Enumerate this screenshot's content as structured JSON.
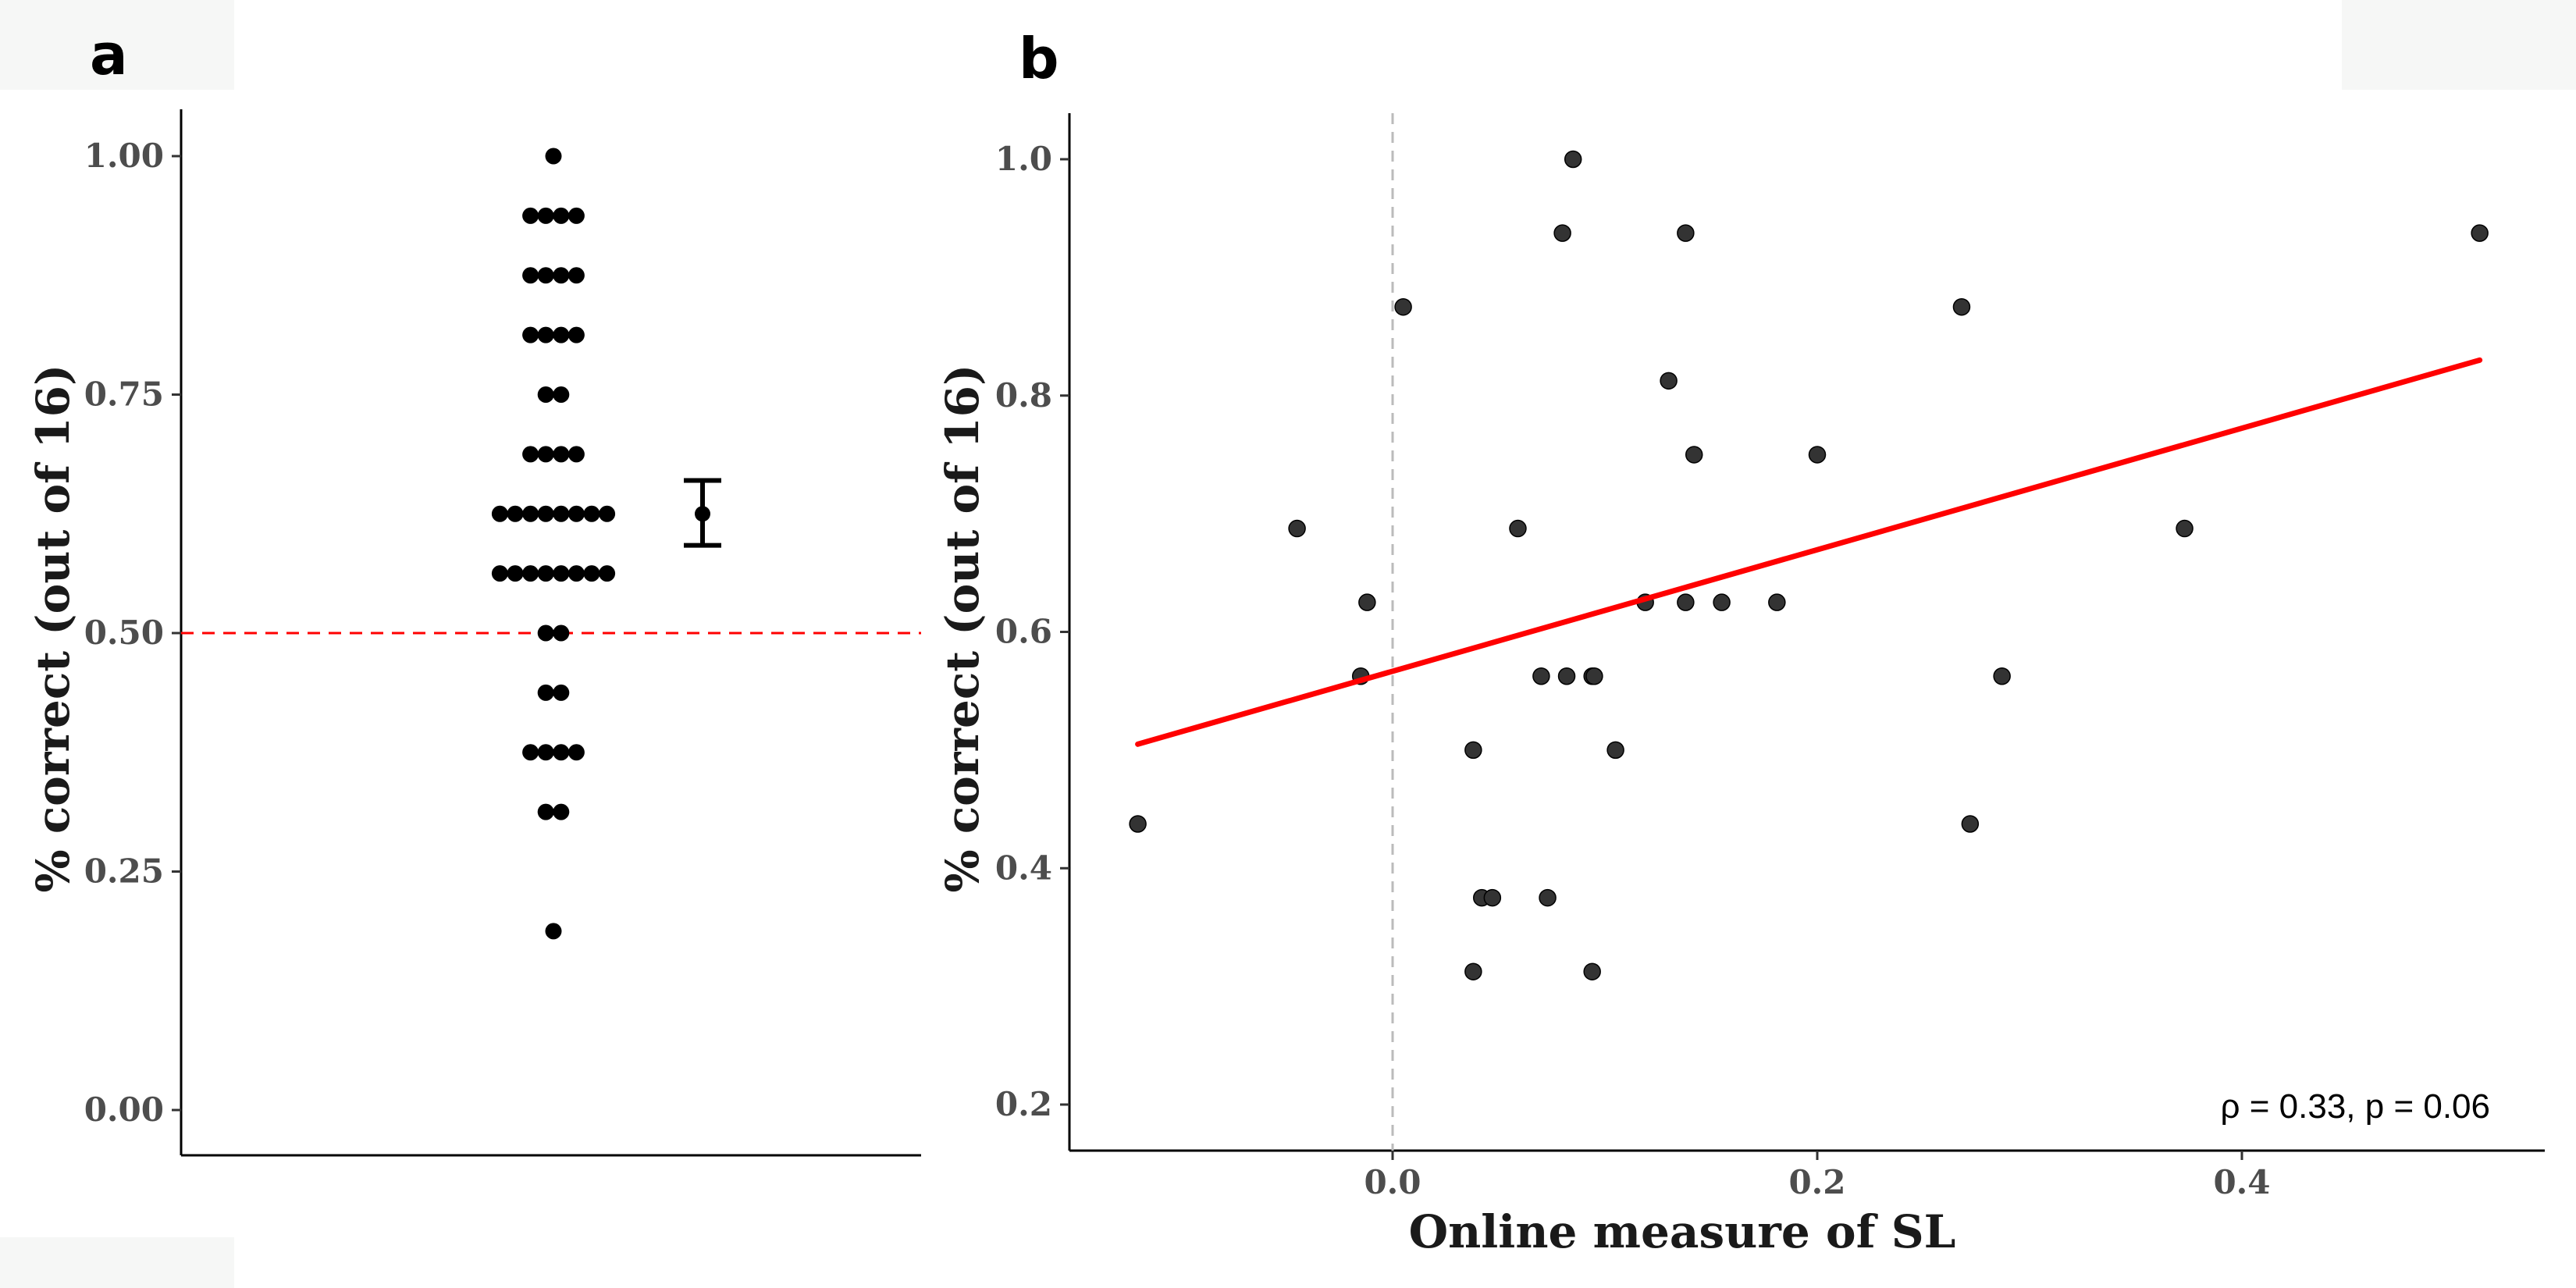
{
  "panels": {
    "a": {
      "label": "a"
    },
    "b": {
      "label": "b"
    }
  },
  "chart_data": [
    {
      "type": "scatter",
      "subtype": "dot-strip",
      "panel": "a",
      "ylabel": "% correct (out of 16)",
      "xlabel": "",
      "ylim": [
        0,
        1.05
      ],
      "yticks": [
        "0.00",
        "0.25",
        "0.50",
        "0.75",
        "1.00"
      ],
      "grid": false,
      "reference_line": {
        "y": 0.5,
        "style": "dashed",
        "color": "#ff0000"
      },
      "points": [
        {
          "y": 1.0,
          "count": 1
        },
        {
          "y": 0.9375,
          "count": 4
        },
        {
          "y": 0.875,
          "count": 4
        },
        {
          "y": 0.8125,
          "count": 4
        },
        {
          "y": 0.75,
          "count": 2
        },
        {
          "y": 0.6875,
          "count": 4
        },
        {
          "y": 0.625,
          "count": 8
        },
        {
          "y": 0.5625,
          "count": 8
        },
        {
          "y": 0.5,
          "count": 2
        },
        {
          "y": 0.4375,
          "count": 2
        },
        {
          "y": 0.375,
          "count": 4
        },
        {
          "y": 0.3125,
          "count": 2
        },
        {
          "y": 0.1875,
          "count": 1
        }
      ],
      "summary": {
        "mean": 0.625,
        "ci_low": 0.592,
        "ci_high": 0.66
      }
    },
    {
      "type": "scatter",
      "panel": "b",
      "xlabel": "Online measure of SL",
      "ylabel": "% correct (out of 16)",
      "xlim": [
        -0.125,
        0.545
      ],
      "ylim": [
        0.18,
        1.04
      ],
      "xticks": [
        "0.0",
        "0.2",
        "0.4"
      ],
      "yticks": [
        "0.2",
        "0.4",
        "0.6",
        "0.8",
        "1.0"
      ],
      "grid": false,
      "reference_line": {
        "x": 0.0,
        "style": "dashed",
        "color": "#bbbbbb"
      },
      "points": [
        {
          "x": -0.12,
          "y": 0.4375
        },
        {
          "x": -0.045,
          "y": 0.6875
        },
        {
          "x": -0.012,
          "y": 0.625
        },
        {
          "x": -0.015,
          "y": 0.5625
        },
        {
          "x": 0.005,
          "y": 0.875
        },
        {
          "x": 0.038,
          "y": 0.5
        },
        {
          "x": 0.038,
          "y": 0.3125
        },
        {
          "x": 0.042,
          "y": 0.375
        },
        {
          "x": 0.047,
          "y": 0.375
        },
        {
          "x": 0.059,
          "y": 0.6875
        },
        {
          "x": 0.07,
          "y": 0.5625
        },
        {
          "x": 0.073,
          "y": 0.375
        },
        {
          "x": 0.08,
          "y": 0.9375
        },
        {
          "x": 0.082,
          "y": 0.5625
        },
        {
          "x": 0.085,
          "y": 1.0
        },
        {
          "x": 0.094,
          "y": 0.5625
        },
        {
          "x": 0.095,
          "y": 0.5625
        },
        {
          "x": 0.094,
          "y": 0.3125
        },
        {
          "x": 0.105,
          "y": 0.5
        },
        {
          "x": 0.119,
          "y": 0.625
        },
        {
          "x": 0.13,
          "y": 0.8125
        },
        {
          "x": 0.138,
          "y": 0.9375
        },
        {
          "x": 0.138,
          "y": 0.625
        },
        {
          "x": 0.142,
          "y": 0.75
        },
        {
          "x": 0.155,
          "y": 0.625
        },
        {
          "x": 0.181,
          "y": 0.625
        },
        {
          "x": 0.2,
          "y": 0.75
        },
        {
          "x": 0.268,
          "y": 0.875
        },
        {
          "x": 0.272,
          "y": 0.4375
        },
        {
          "x": 0.287,
          "y": 0.5625
        },
        {
          "x": 0.373,
          "y": 0.6875
        },
        {
          "x": 0.512,
          "y": 0.9375
        }
      ],
      "fit_line": {
        "color": "#ff0000",
        "x": [
          -0.12,
          0.512
        ],
        "y": [
          0.505,
          0.83
        ]
      },
      "annotation": "ρ = 0.33, p = 0.06"
    }
  ]
}
